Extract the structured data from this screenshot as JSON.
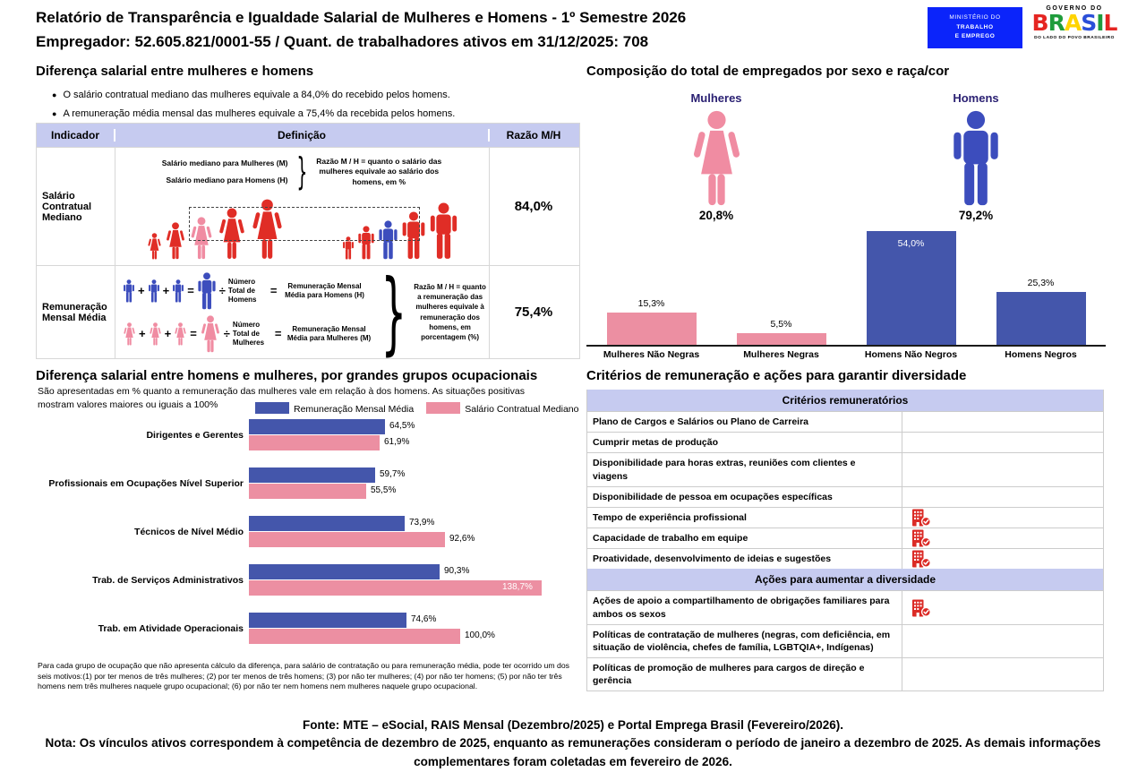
{
  "header": {
    "title_line1": "Relatório de Transparência e Igualdade Salarial de Mulheres e Homens - 1º Semestre 2026",
    "title_line2": "Empregador: 52.605.821/0001-55 / Quant. de trabalhadores ativos em 31/12/2025: 708",
    "logo_mte": {
      "line1": "MINISTÉRIO DO",
      "line2": "TRABALHO",
      "line3": "E EMPREGO",
      "bg": "#0b24fa"
    },
    "logo_gov": {
      "top": "GOVERNO DO",
      "brand": "BRASIL",
      "bottom": "DO LADO DO POVO BRASILEIRO",
      "letter_colors": [
        "#e52521",
        "#1f9c3c",
        "#ffd400",
        "#2b4fd8",
        "#1f9c3c",
        "#e52521"
      ]
    }
  },
  "colors": {
    "lavender": "#c6cbf0",
    "bar_blue": "#4456ab",
    "bar_pink": "#ec8fa2",
    "red": "#e02d26",
    "pink": "#f08ca2",
    "blue": "#3c4dbd",
    "navy_label": "#2b2173"
  },
  "salary_diff": {
    "title": "Diferença salarial entre mulheres e homens",
    "bullets": [
      "O salário contratual mediano das mulheres equivale a 84,0% do recebido pelos homens.",
      "A remuneração média mensal das mulheres equivale a 75,4% da recebida pelos homens."
    ],
    "table": {
      "headers": [
        "Indicador",
        "Definição",
        "Razão M/H"
      ],
      "row1": {
        "indicator": "Salário Contratual Mediano",
        "def_lines": [
          "Salário mediano para Mulheres (M)",
          "Salário mediano para Homens (H)"
        ],
        "note": "Razão M / H = quanto o salário das mulheres equivale ao salário dos homens, em %",
        "ratio": "84,0%",
        "figures_left": {
          "type": "female",
          "heights": [
            30,
            42,
            48,
            58,
            68
          ],
          "colors": [
            "red",
            "red",
            "pink",
            "red",
            "red"
          ]
        },
        "figures_right": {
          "type": "male",
          "heights": [
            26,
            38,
            44,
            54,
            64
          ],
          "colors": [
            "red",
            "red",
            "blue",
            "red",
            "red"
          ]
        }
      },
      "row2": {
        "indicator": "Remuneração Mensal Média",
        "operators": {
          "plus": "+",
          "equals": "=",
          "divide": "÷"
        },
        "formulas": [
          {
            "type": "male",
            "color": "blue",
            "divisor": "Número Total de Homens",
            "result": "Remuneração Mensal Média para Homens (H)"
          },
          {
            "type": "female",
            "color": "pink",
            "divisor": "Número Total de Mulheres",
            "result": "Remuneração Mensal Média para Mulheres (M)"
          }
        ],
        "note": "Razão M / H = quanto a remuneração das mulheres equivale à remuneração dos homens, em porcentagem (%)",
        "ratio": "75,4%"
      }
    }
  },
  "composition": {
    "title": "Composição do total de empregados por sexo e raça/cor",
    "figures": [
      {
        "label": "Mulheres",
        "pct": "20,8%",
        "type": "female",
        "color": "pink"
      },
      {
        "label": "Homens",
        "pct": "79,2%",
        "type": "male",
        "color": "blue"
      }
    ]
  },
  "occupational": {
    "title": "Diferença salarial entre homens e mulheres, por grandes grupos ocupacionais",
    "subtitle": "São apresentadas em % quanto a remuneração das mulheres vale em relação à dos homens. As situações positivas mostram valores maiores ou iguais a 100%",
    "footnote": "Para cada grupo de ocupação que não apresenta cálculo da diferença, para salário de contratação ou para remuneração média, pode ter ocorrido um dos seis motivos:(1) por ter menos de três mulheres; (2) por ter menos de três homens; (3) por não ter mulheres; (4) por não ter homens; (5) por não ter três homens nem três mulheres naquele grupo ocupacional; (6) por não ter nem homens nem mulheres naquele grupo ocupacional."
  },
  "criteria": {
    "title": "Critérios de remuneração e ações para garantir diversidade",
    "sections": [
      {
        "header": "Critérios remuneratórios",
        "rows": [
          {
            "label": "Plano de Cargos e Salários ou Plano de Carreira",
            "checked": false
          },
          {
            "label": "Cumprir metas de produção",
            "checked": false
          },
          {
            "label": "Disponibilidade para horas extras, reuniões com clientes e viagens",
            "checked": false
          },
          {
            "label": "Disponibilidade de pessoa em ocupações específicas",
            "checked": false
          },
          {
            "label": "Tempo de experiência profissional",
            "checked": true
          },
          {
            "label": "Capacidade de trabalho em equipe",
            "checked": true
          },
          {
            "label": "Proatividade, desenvolvimento de ideias e sugestões",
            "checked": true
          }
        ]
      },
      {
        "header": "Ações para aumentar a diversidade",
        "rows": [
          {
            "label": "Ações de apoio a compartilhamento de obrigações familiares para ambos os sexos",
            "checked": true
          },
          {
            "label": "Políticas de contratação de mulheres (negras, com deficiência, em situação de violência, chefes de família, LGBTQIA+, Indígenas)",
            "checked": false
          },
          {
            "label": "Políticas de promoção de mulheres para cargos de direção e gerência",
            "checked": false
          }
        ]
      }
    ]
  },
  "footer": {
    "fonte": "Fonte: MTE – eSocial, RAIS Mensal (Dezembro/2025) e Portal Emprega Brasil (Fevereiro/2026).",
    "nota": "Nota: Os vínculos ativos correspondem à competência de dezembro de 2025, enquanto as remunerações consideram o período de janeiro a dezembro de 2025. As demais informações complementares foram coletadas em fevereiro de 2026."
  },
  "chart_data": [
    {
      "type": "bar",
      "title": "Composição do total de empregados por sexo e raça/cor",
      "categories": [
        "Mulheres Não Negras",
        "Mulheres Negras",
        "Homens Não Negros",
        "Homens Negros"
      ],
      "values": [
        15.3,
        5.5,
        54.0,
        25.3
      ],
      "value_labels": [
        "15,3%",
        "5,5%",
        "54,0%",
        "25,3%"
      ],
      "bar_colors": [
        "#ec8fa2",
        "#ec8fa2",
        "#4456ab",
        "#4456ab"
      ],
      "label_inside": [
        false,
        false,
        true,
        false
      ],
      "xlabel": "",
      "ylabel": "",
      "ylim": [
        0,
        57
      ],
      "grid": false,
      "legend_position": "none"
    },
    {
      "type": "bar-horizontal-grouped",
      "title": "Diferença salarial entre homens e mulheres, por grandes grupos ocupacionais",
      "categories": [
        "Dirigentes e Gerentes",
        "Profissionais em Ocupações Nível Superior",
        "Técnicos de Nível Médio",
        "Trab. de Serviços Administrativos",
        "Trab. em Atividade Operacionais"
      ],
      "series": [
        {
          "name": "Remuneração Mensal Média",
          "color": "#4456ab",
          "values": [
            64.5,
            59.7,
            73.9,
            90.3,
            74.6
          ],
          "labels": [
            "64,5%",
            "59,7%",
            "73,9%",
            "90,3%",
            "74,6%"
          ],
          "label_inside": [
            false,
            false,
            false,
            false,
            false
          ]
        },
        {
          "name": "Salário Contratual Mediano",
          "color": "#ec8fa2",
          "values": [
            61.9,
            55.5,
            92.6,
            138.7,
            100.0
          ],
          "labels": [
            "61,9%",
            "55,5%",
            "92,6%",
            "138,7%",
            "100,0%"
          ],
          "label_inside": [
            false,
            false,
            false,
            true,
            false
          ]
        }
      ],
      "xlim": [
        0,
        150
      ],
      "grid": false,
      "legend_position": "top"
    }
  ]
}
